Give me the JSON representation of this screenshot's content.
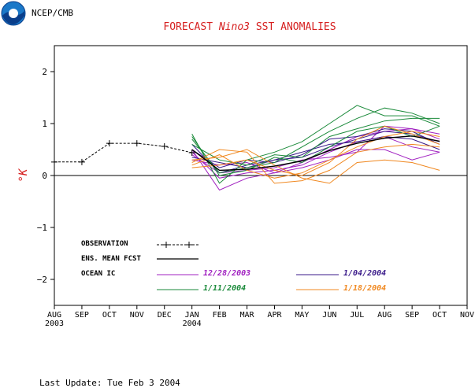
{
  "header": {
    "agency": "NCEP/CMB",
    "title_pre": "FORECAST ",
    "title_italic": "Nino3",
    "title_post": "  SST ANOMALIES",
    "last_update": "Last Update: Tue Feb 3 2004"
  },
  "colors": {
    "title": "#d62020",
    "axis": "#000000",
    "observation": "#000000",
    "ens_mean": "#000000",
    "ic_1": "#a020c0",
    "ic_2": "#3a1a8a",
    "ic_3": "#1a8a3a",
    "ic_4": "#f08820"
  },
  "chart_data": {
    "type": "line",
    "title": "FORECAST Nino3  SST ANOMALIES",
    "ylabel": "°K",
    "ylim": [
      -2.5,
      2.5
    ],
    "yticks": [
      -2,
      -1,
      0,
      1,
      2
    ],
    "ytick_labels": [
      "−2",
      "−1",
      "0",
      "1",
      "2"
    ],
    "xlim": [
      0,
      15
    ],
    "xticks": [
      {
        "x": 0,
        "label": "AUG",
        "year": "2003"
      },
      {
        "x": 1,
        "label": "SEP",
        "year": ""
      },
      {
        "x": 2,
        "label": "OCT",
        "year": ""
      },
      {
        "x": 3,
        "label": "NOV",
        "year": ""
      },
      {
        "x": 4,
        "label": "DEC",
        "year": ""
      },
      {
        "x": 5,
        "label": "JAN",
        "year": "2004"
      },
      {
        "x": 6,
        "label": "FEB",
        "year": ""
      },
      {
        "x": 7,
        "label": "MAR",
        "year": ""
      },
      {
        "x": 8,
        "label": "APR",
        "year": ""
      },
      {
        "x": 9,
        "label": "MAY",
        "year": ""
      },
      {
        "x": 10,
        "label": "JUN",
        "year": ""
      },
      {
        "x": 11,
        "label": "JUL",
        "year": ""
      },
      {
        "x": 12,
        "label": "AUG",
        "year": ""
      },
      {
        "x": 13,
        "label": "SEP",
        "year": ""
      },
      {
        "x": 14,
        "label": "OCT",
        "year": ""
      },
      {
        "x": 15,
        "label": "NOV",
        "year": ""
      }
    ],
    "zero_line": true,
    "legend": {
      "observation": "OBSERVATION",
      "ens_mean": "ENS. MEAN FCST",
      "ocean_ic": "OCEAN IC",
      "ic_labels": [
        "12/28/2003",
        "1/04/2004",
        "1/11/2004",
        "1/18/2004"
      ]
    },
    "observation": {
      "x": [
        0,
        1,
        2,
        3,
        4,
        5
      ],
      "y": [
        0.26,
        0.26,
        0.62,
        0.62,
        0.56,
        0.44
      ]
    },
    "ens_mean": {
      "x": [
        5,
        6,
        7,
        8,
        9,
        10,
        11,
        12,
        13,
        14
      ],
      "y": [
        0.5,
        0.1,
        0.12,
        0.18,
        0.28,
        0.48,
        0.62,
        0.72,
        0.76,
        0.66
      ]
    },
    "x_forecast": [
      5,
      6,
      7,
      8,
      9,
      10,
      11,
      12,
      13,
      14
    ],
    "series": [
      {
        "group": 0,
        "values": [
          0.5,
          -0.28,
          -0.05,
          0.05,
          0.25,
          0.5,
          0.75,
          0.85,
          0.9,
          0.8
        ]
      },
      {
        "group": 0,
        "values": [
          0.45,
          -0.05,
          0.05,
          0.1,
          0.2,
          0.45,
          0.65,
          0.75,
          0.55,
          0.45
        ]
      },
      {
        "group": 0,
        "values": [
          0.4,
          0.05,
          0.1,
          0.15,
          0.3,
          0.35,
          0.45,
          0.95,
          0.9,
          0.7
        ]
      },
      {
        "group": 0,
        "values": [
          0.3,
          0.2,
          0.25,
          0.05,
          0.15,
          0.3,
          0.5,
          0.5,
          0.3,
          0.45
        ]
      },
      {
        "group": 1,
        "values": [
          0.6,
          0.05,
          0.2,
          0.3,
          0.35,
          0.55,
          0.7,
          0.85,
          0.8,
          0.65
        ]
      },
      {
        "group": 1,
        "values": [
          0.5,
          0.15,
          0.3,
          0.25,
          0.4,
          0.7,
          0.75,
          0.9,
          0.85,
          0.6
        ]
      },
      {
        "group": 1,
        "values": [
          0.35,
          0.25,
          0.15,
          0.3,
          0.45,
          0.6,
          0.65,
          0.75,
          0.7,
          0.5
        ]
      },
      {
        "group": 2,
        "values": [
          0.8,
          -0.15,
          0.3,
          0.45,
          0.65,
          1.0,
          1.35,
          1.15,
          1.15,
          0.95
        ]
      },
      {
        "group": 2,
        "values": [
          0.7,
          0.05,
          0.15,
          0.25,
          0.55,
          0.85,
          1.1,
          1.3,
          1.2,
          1.0
        ]
      },
      {
        "group": 2,
        "values": [
          0.6,
          0.3,
          0.2,
          0.4,
          0.35,
          0.75,
          0.9,
          1.05,
          1.1,
          1.1
        ]
      },
      {
        "group": 2,
        "values": [
          0.75,
          0.0,
          0.1,
          0.35,
          0.25,
          0.55,
          0.85,
          0.95,
          0.75,
          0.95
        ]
      },
      {
        "group": 3,
        "values": [
          0.25,
          0.5,
          0.45,
          -0.15,
          -0.1,
          0.1,
          0.45,
          0.55,
          0.6,
          0.55
        ]
      },
      {
        "group": 3,
        "values": [
          0.3,
          0.35,
          0.5,
          0.2,
          -0.05,
          -0.15,
          0.25,
          0.3,
          0.25,
          0.1
        ]
      },
      {
        "group": 3,
        "values": [
          0.2,
          0.4,
          0.1,
          -0.05,
          0.05,
          0.3,
          0.55,
          0.75,
          0.85,
          0.75
        ]
      },
      {
        "group": 3,
        "values": [
          0.15,
          0.2,
          0.3,
          0.1,
          0.0,
          0.25,
          0.7,
          0.95,
          0.8,
          0.6
        ]
      }
    ]
  }
}
